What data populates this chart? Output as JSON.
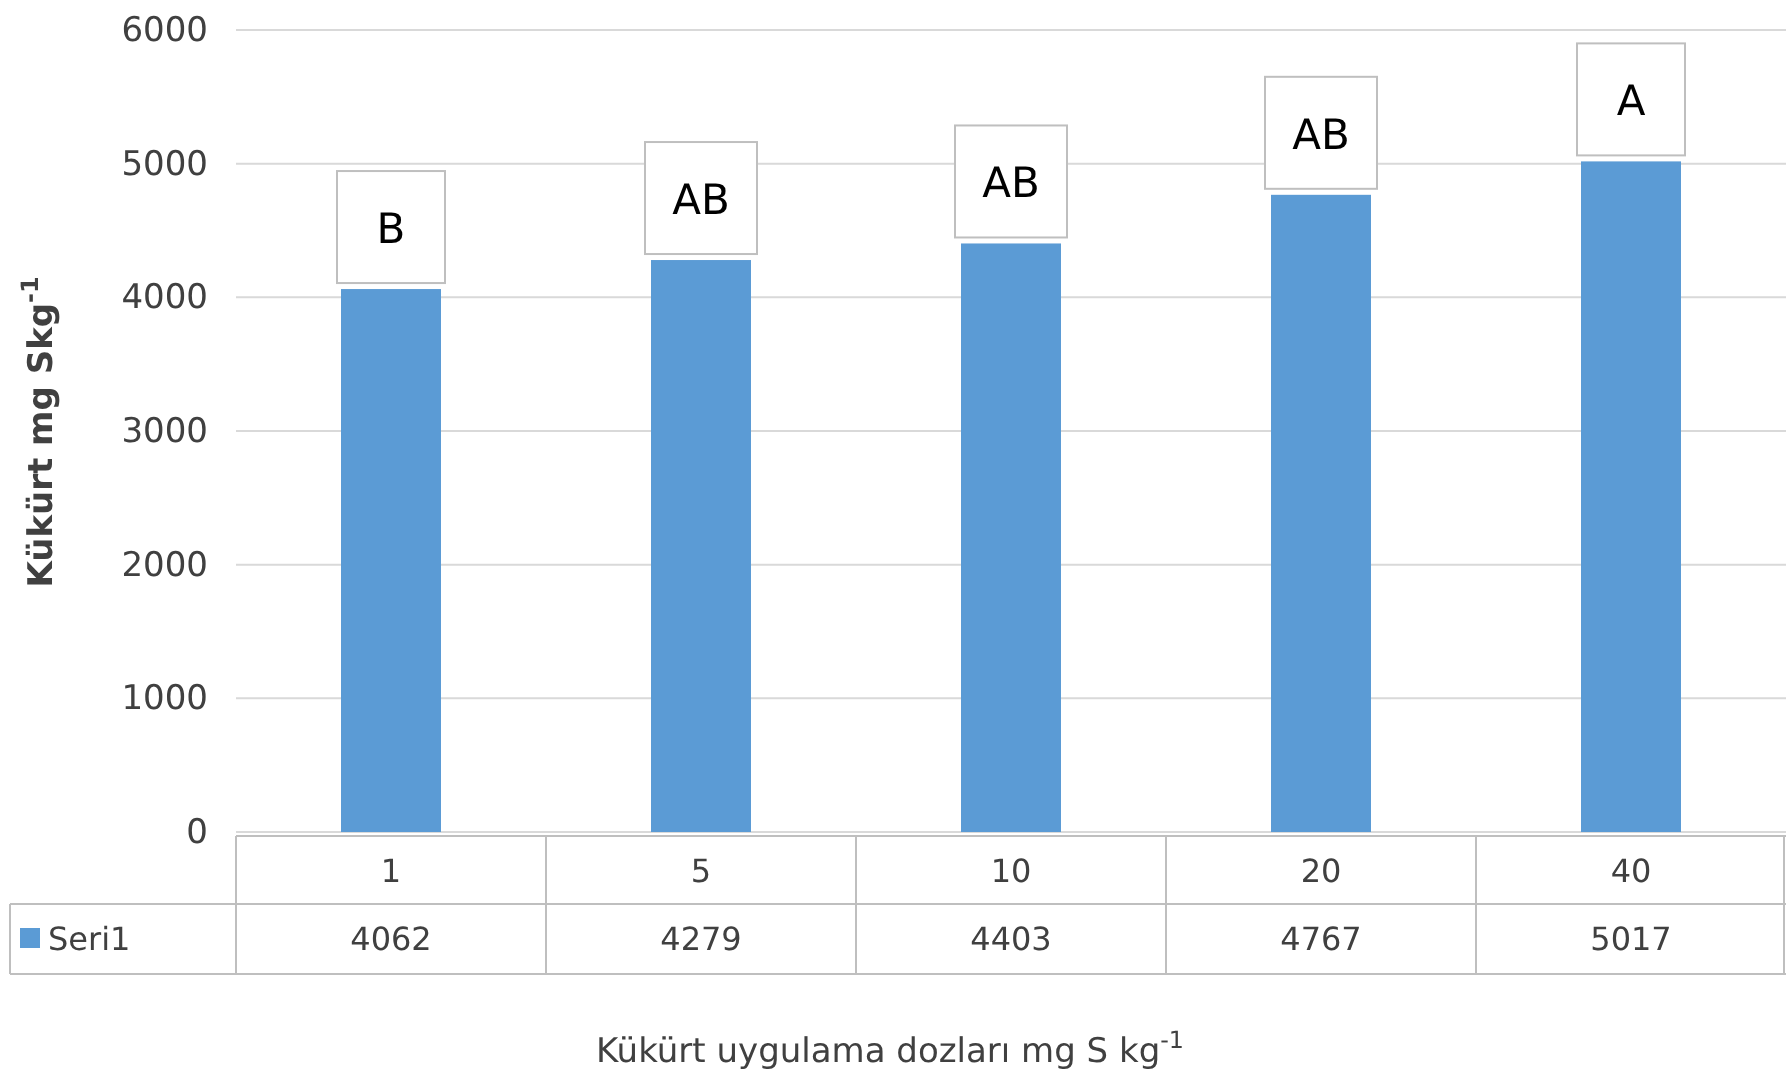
{
  "chart_data": {
    "type": "bar",
    "xlabel": "Kükürt uygulama dozları mg S kg$^{-1}$",
    "ylabel": "Kükürt mg Skg$^{-1}$",
    "categories": [
      "1",
      "5",
      "10",
      "20",
      "40"
    ],
    "series": [
      {
        "name": "Seri1",
        "color": "#5b9bd5",
        "values": [
          4062,
          4279,
          4403,
          4767,
          5017
        ]
      }
    ],
    "ylim": [
      0,
      6000
    ],
    "yticks": [
      0,
      1000,
      2000,
      3000,
      4000,
      5000,
      6000
    ],
    "grid": "y",
    "data_labels": true,
    "annotations": [
      {
        "text": "B",
        "x": "1",
        "y": 4062
      },
      {
        "text": "AB",
        "x": "5",
        "y": 4279
      },
      {
        "text": "AB",
        "x": "10",
        "y": 4403
      },
      {
        "text": "AB",
        "x": "20",
        "y": 4767
      },
      {
        "text": "A",
        "x": "40",
        "y": 5017
      }
    ]
  }
}
